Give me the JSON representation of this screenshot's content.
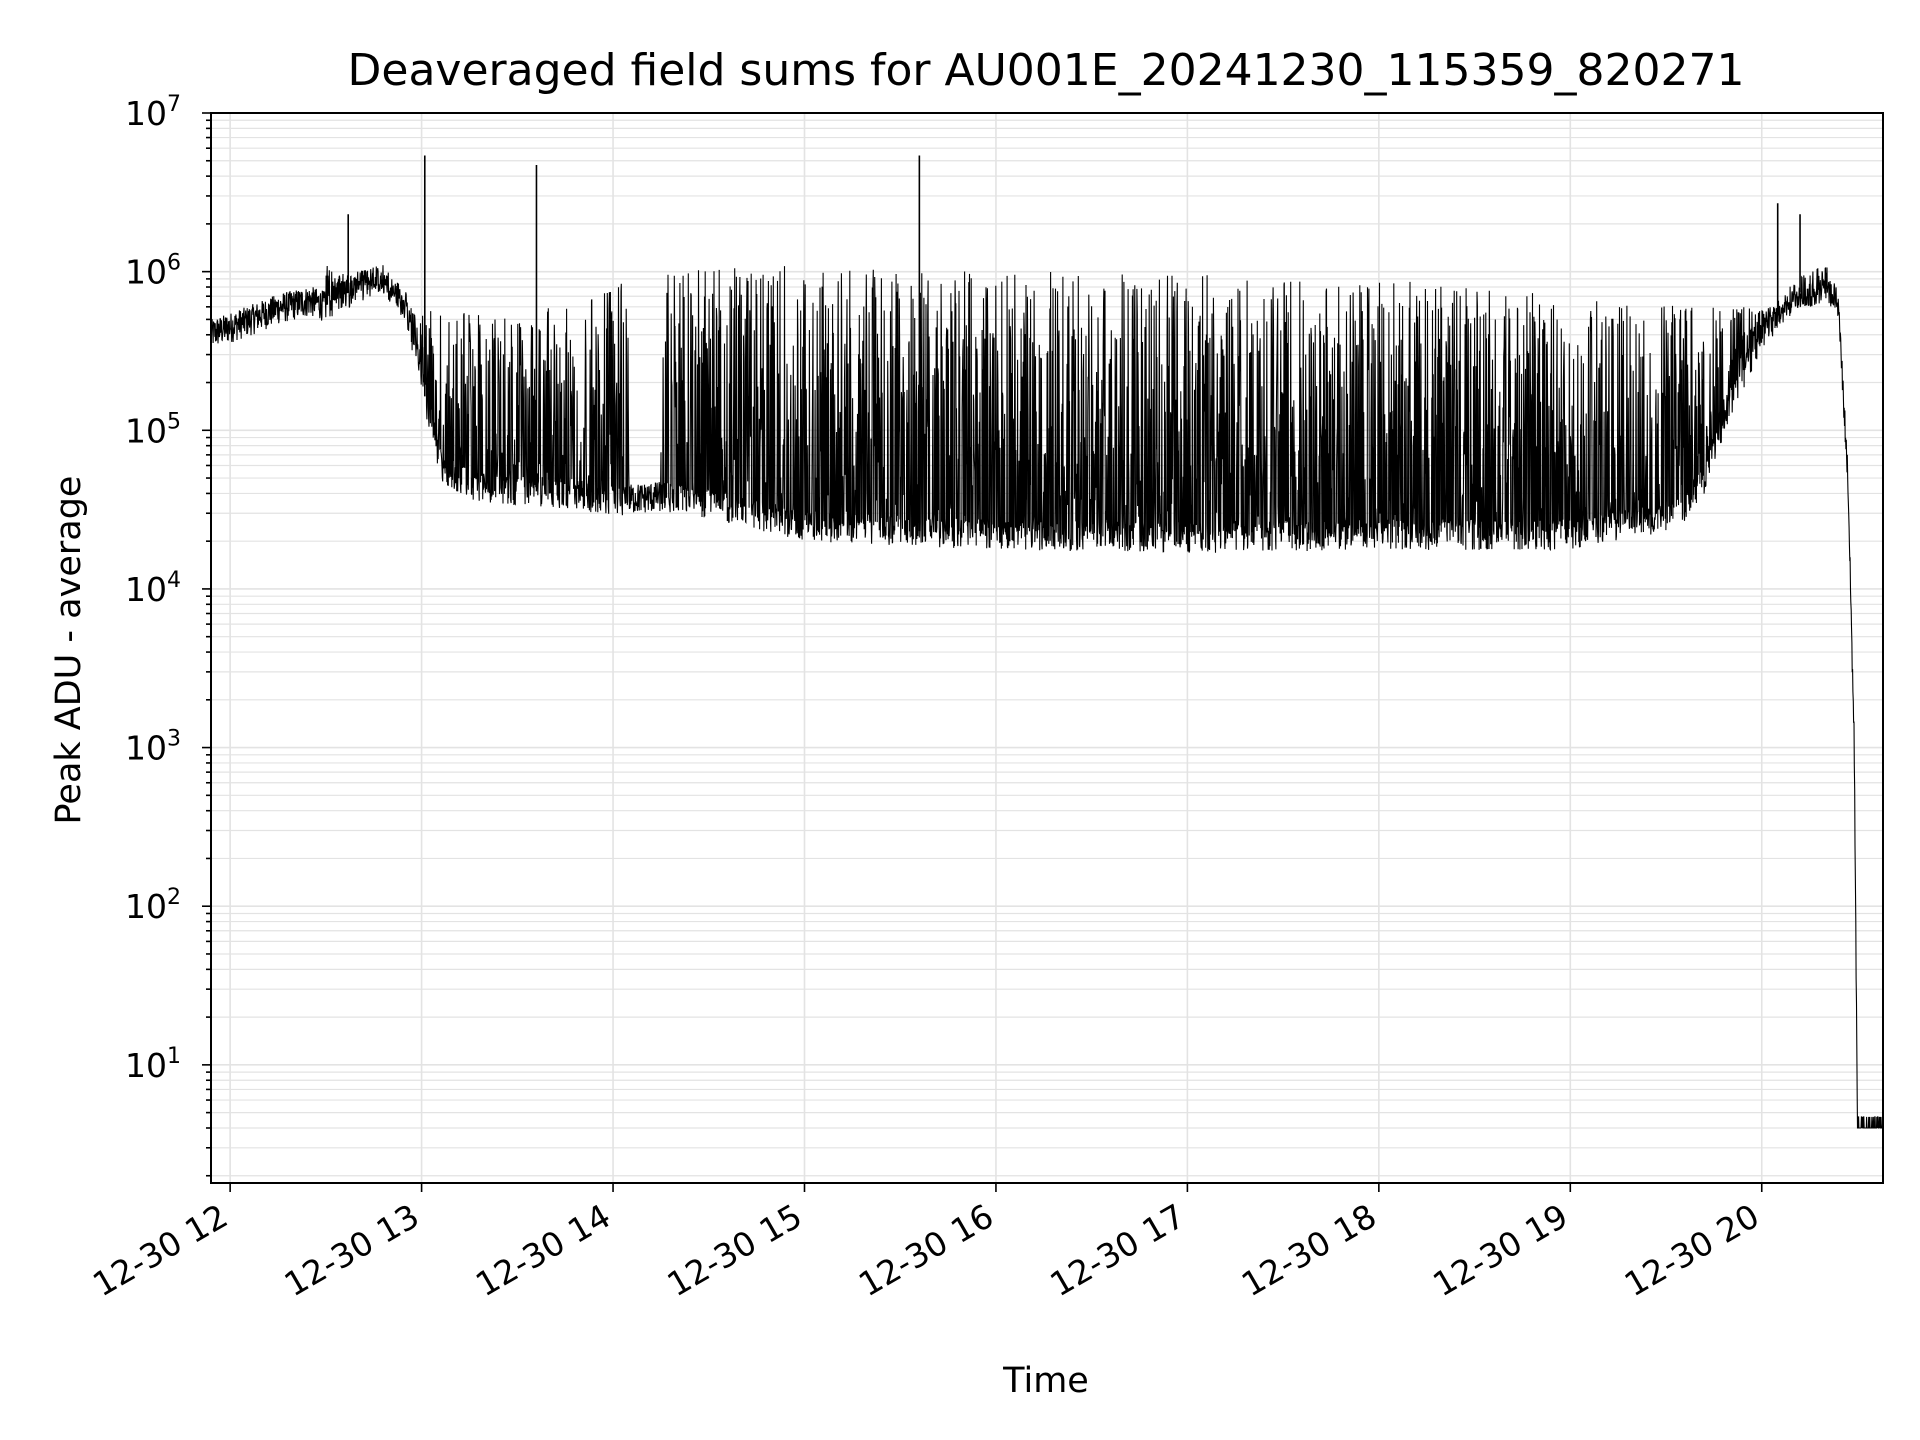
{
  "chart_data": {
    "type": "line",
    "title": "Deaveraged field sums for AU001E_20241230_115359_820271",
    "xlabel": "Time",
    "ylabel": "Peak ADU - average",
    "x_tick_labels": [
      "12-30 12",
      "12-30 13",
      "12-30 14",
      "12-30 15",
      "12-30 16",
      "12-30 17",
      "12-30 18",
      "12-30 19",
      "12-30 20"
    ],
    "y_scale": "log",
    "y_tick_labels": [
      {
        "base": "10",
        "exp": "1"
      },
      {
        "base": "10",
        "exp": "2"
      },
      {
        "base": "10",
        "exp": "3"
      },
      {
        "base": "10",
        "exp": "4"
      },
      {
        "base": "10",
        "exp": "5"
      },
      {
        "base": "10",
        "exp": "6"
      },
      {
        "base": "10",
        "exp": "7"
      }
    ],
    "xlim": [
      "2024-12-30 11:54",
      "2024-12-30 20:38"
    ],
    "ylim": [
      1.8,
      10000000
    ],
    "grid": true,
    "line_color": "#000000",
    "series": [
      {
        "points": [
          [
            "2024-12-30 11:54",
            400000
          ],
          [
            "2024-12-30 12:05",
            480000
          ],
          [
            "2024-12-30 12:15",
            580000
          ],
          [
            "2024-12-30 12:25",
            650000
          ],
          [
            "2024-12-30 12:30",
            600000
          ],
          [
            "2024-12-30 12:40",
            800000
          ],
          [
            "2024-12-30 12:48",
            900000
          ],
          [
            "2024-12-30 12:55",
            600000
          ],
          [
            "2024-12-30 13:00",
            200000
          ],
          [
            "2024-12-30 13:06",
            60000
          ],
          [
            "2024-12-30 13:15",
            45000
          ],
          [
            "2024-12-30 13:30",
            42000
          ],
          [
            "2024-12-30 13:45",
            40000
          ],
          [
            "2024-12-30 14:00",
            36000
          ],
          [
            "2024-12-30 14:15",
            38000
          ],
          [
            "2024-12-30 14:30",
            35000
          ],
          [
            "2024-12-30 15:00",
            25000
          ],
          [
            "2024-12-30 16:00",
            22000
          ],
          [
            "2024-12-30 17:00",
            21000
          ],
          [
            "2024-12-30 18:00",
            22000
          ],
          [
            "2024-12-30 19:00",
            22000
          ],
          [
            "2024-12-30 19:35",
            30000
          ],
          [
            "2024-12-30 19:42",
            50000
          ],
          [
            "2024-12-30 19:50",
            150000
          ],
          [
            "2024-12-30 20:00",
            400000
          ],
          [
            "2024-12-30 20:10",
            700000
          ],
          [
            "2024-12-30 20:20",
            900000
          ],
          [
            "2024-12-30 20:24",
            600000
          ],
          [
            "2024-12-30 20:27",
            50000
          ],
          [
            "2024-12-30 20:29",
            1000
          ],
          [
            "2024-12-30 20:30",
            4
          ],
          [
            "2024-12-30 20:38",
            4
          ]
        ],
        "upper_envelope": [
          [
            "2024-12-30 12:30",
            1100000
          ],
          [
            "2024-12-30 13:00",
            600000
          ],
          [
            "2024-12-30 13:30",
            500000
          ],
          [
            "2024-12-30 14:15",
            1100000
          ],
          [
            "2024-12-30 15:00",
            1100000
          ],
          [
            "2024-12-30 16:00",
            1000000
          ],
          [
            "2024-12-30 17:00",
            1000000
          ],
          [
            "2024-12-30 18:00",
            900000
          ],
          [
            "2024-12-30 19:00",
            700000
          ],
          [
            "2024-12-30 19:40",
            600000
          ]
        ],
        "spikes": [
          [
            "2024-12-30 12:37",
            2300000
          ],
          [
            "2024-12-30 13:01",
            5400000
          ],
          [
            "2024-12-30 13:36",
            4700000
          ],
          [
            "2024-12-30 15:36",
            5400000
          ],
          [
            "2024-12-30 20:05",
            2700000
          ],
          [
            "2024-12-30 20:12",
            2300000
          ]
        ],
        "noisy_intervals": [
          [
            "2024-12-30 12:30",
            "2024-12-30 13:05"
          ],
          [
            "2024-12-30 13:05",
            "2024-12-30 14:05"
          ],
          [
            "2024-12-30 14:15",
            "2024-12-30 19:42"
          ],
          [
            "2024-12-30 19:42",
            "2024-12-30 20:24"
          ]
        ]
      }
    ]
  }
}
